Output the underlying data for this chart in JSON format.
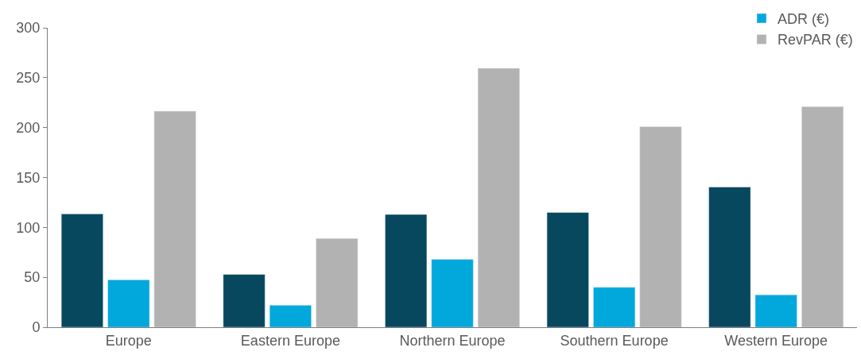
{
  "chart_data": {
    "type": "bar",
    "categories": [
      "Europe",
      "Eastern Europe",
      "Northern Europe",
      "Southern Europe",
      "Western Europe"
    ],
    "series": [
      {
        "color": "#08485f",
        "values": [
          113.5,
          53,
          113,
          115,
          140.5
        ]
      },
      {
        "name": "ADR (€)",
        "color": "#00a8dc",
        "values": [
          47.5,
          22,
          68,
          40,
          32.5
        ]
      },
      {
        "name": "RevPAR (€)",
        "color": "#b2b2b2",
        "values": [
          216.5,
          89,
          259.5,
          201,
          221
        ]
      }
    ],
    "ylim": [
      0,
      300
    ],
    "yticks": [
      0,
      50,
      100,
      150,
      200,
      250,
      300
    ],
    "legend": "top right"
  }
}
